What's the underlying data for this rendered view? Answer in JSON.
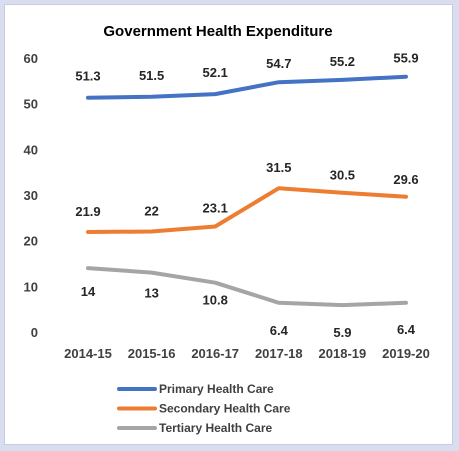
{
  "chart_data": {
    "type": "line",
    "title": "Government Health Expenditure",
    "categories": [
      "2014-15",
      "2015-16",
      "2016-17",
      "2017-18",
      "2018-19",
      "2019-20"
    ],
    "ylim": [
      0,
      60
    ],
    "yticks": [
      0,
      10,
      20,
      30,
      40,
      50,
      60
    ],
    "grid": false,
    "legend_position": "bottom",
    "series": [
      {
        "name": "Primary Health Care",
        "color": "#4472c4",
        "values": [
          51.3,
          51.5,
          52.1,
          54.7,
          55.2,
          55.9
        ],
        "labels": [
          "51.3",
          "51.5",
          "52.1",
          "54.7",
          "55.2",
          "55.9"
        ]
      },
      {
        "name": "Secondary Health Care",
        "color": "#ed7d31",
        "values": [
          21.9,
          22,
          23.1,
          31.5,
          30.5,
          29.6
        ],
        "labels": [
          "21.9",
          "22",
          "23.1",
          "31.5",
          "30.5",
          "29.6"
        ]
      },
      {
        "name": "Tertiary Health Care",
        "color": "#a5a5a5",
        "values": [
          14,
          13,
          10.8,
          6.4,
          5.9,
          6.4
        ],
        "labels": [
          "14",
          "13",
          "10.8",
          "6.4",
          "5.9",
          "6.4"
        ]
      }
    ]
  }
}
